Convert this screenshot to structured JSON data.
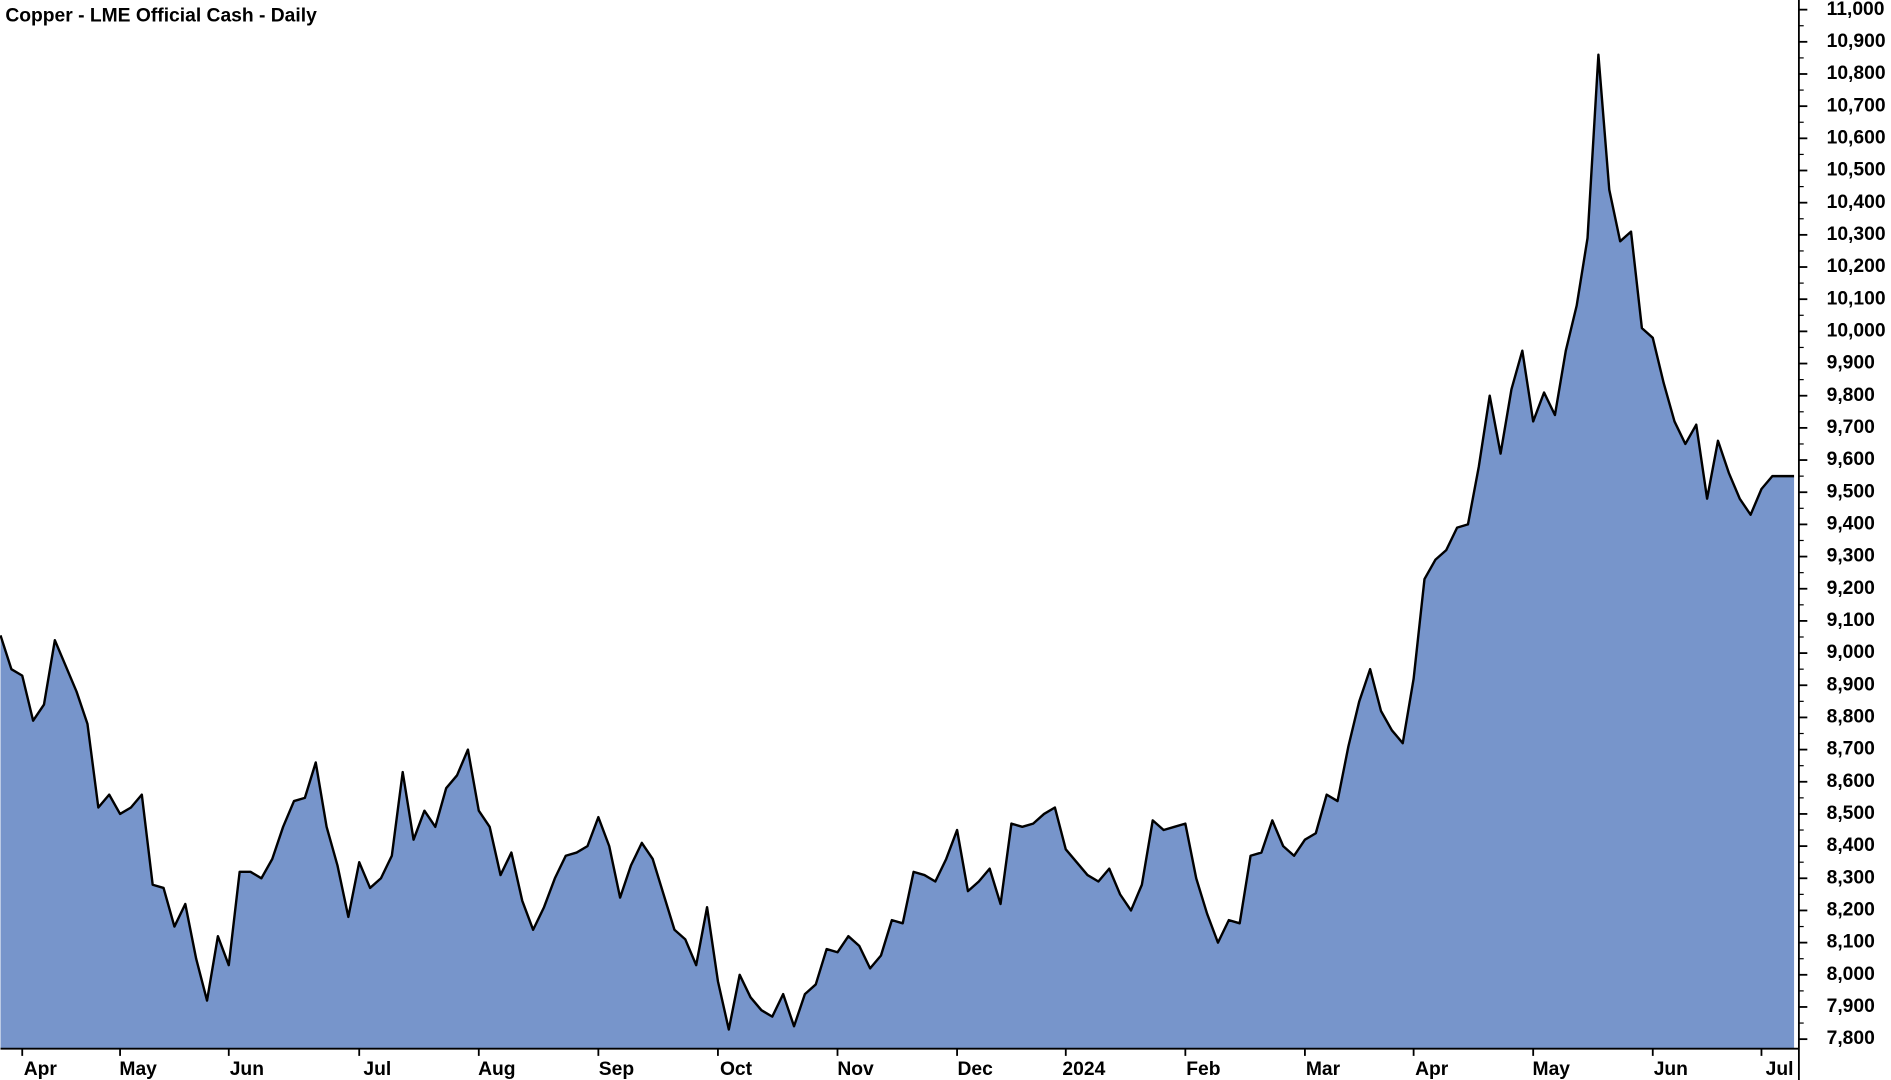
{
  "chart_data": {
    "type": "area",
    "title": "Copper - LME Official Cash - Daily",
    "color": "#7795cb",
    "line_color": "#000000",
    "categories": [
      null,
      null,
      "Apr",
      null,
      null,
      null,
      null,
      null,
      null,
      null,
      null,
      "May",
      null,
      null,
      null,
      null,
      null,
      null,
      null,
      null,
      null,
      "Jun",
      null,
      null,
      null,
      null,
      null,
      null,
      null,
      null,
      null,
      null,
      null,
      "Jul",
      null,
      null,
      null,
      null,
      null,
      null,
      null,
      null,
      null,
      null,
      "Aug",
      null,
      null,
      null,
      null,
      null,
      null,
      null,
      null,
      null,
      null,
      "Sep",
      null,
      null,
      null,
      null,
      null,
      null,
      null,
      null,
      null,
      null,
      "Oct",
      null,
      null,
      null,
      null,
      null,
      null,
      null,
      null,
      null,
      null,
      "Nov",
      null,
      null,
      null,
      null,
      null,
      null,
      null,
      null,
      null,
      null,
      "Dec",
      null,
      null,
      null,
      null,
      null,
      null,
      null,
      null,
      null,
      "2024",
      null,
      null,
      null,
      null,
      null,
      null,
      null,
      null,
      null,
      null,
      "Feb",
      null,
      null,
      null,
      null,
      null,
      null,
      null,
      null,
      null,
      null,
      "Mar",
      null,
      null,
      null,
      null,
      null,
      null,
      null,
      null,
      null,
      "Apr",
      null,
      null,
      null,
      null,
      null,
      null,
      null,
      null,
      null,
      null,
      "May",
      null,
      null,
      null,
      null,
      null,
      null,
      null,
      null,
      null,
      null,
      "Jun",
      null,
      null,
      null,
      null,
      null,
      null,
      null,
      null,
      null,
      "Jul",
      null,
      null,
      null
    ],
    "values": [
      9055,
      8950,
      8930,
      8790,
      8840,
      9040,
      8960,
      8880,
      8780,
      8520,
      8560,
      8500,
      8520,
      8560,
      8280,
      8270,
      8150,
      8220,
      8050,
      7920,
      8120,
      8030,
      8320,
      8320,
      8300,
      8360,
      8460,
      8540,
      8550,
      8660,
      8460,
      8340,
      8180,
      8350,
      8270,
      8300,
      8370,
      8630,
      8420,
      8510,
      8460,
      8580,
      8620,
      8700,
      8510,
      8460,
      8310,
      8380,
      8230,
      8140,
      8210,
      8300,
      8370,
      8380,
      8400,
      8490,
      8400,
      8240,
      8340,
      8410,
      8360,
      8250,
      8140,
      8110,
      8030,
      8210,
      7980,
      7830,
      8000,
      7930,
      7890,
      7870,
      7940,
      7840,
      7940,
      7970,
      8080,
      8070,
      8120,
      8090,
      8020,
      8060,
      8170,
      8160,
      8320,
      8310,
      8290,
      8360,
      8450,
      8260,
      8290,
      8330,
      8220,
      8470,
      8460,
      8470,
      8500,
      8520,
      8390,
      8350,
      8310,
      8290,
      8330,
      8250,
      8200,
      8280,
      8480,
      8450,
      8460,
      8470,
      8300,
      8190,
      8100,
      8170,
      8160,
      8370,
      8380,
      8480,
      8400,
      8370,
      8420,
      8440,
      8560,
      8540,
      8710,
      8850,
      8950,
      8820,
      8760,
      8720,
      8920,
      9230,
      9290,
      9320,
      9390,
      9400,
      9580,
      9800,
      9620,
      9820,
      9940,
      9720,
      9810,
      9740,
      9940,
      10080,
      10290,
      10860,
      10440,
      10280,
      10310,
      10010,
      9980,
      9840,
      9720,
      9650,
      9710,
      9480,
      9660,
      9560,
      9480,
      9430,
      9510,
      9550,
      9550,
      9550
    ],
    "ylim": [
      7673,
      11030
    ],
    "yticks": [
      {
        "value": 7800,
        "label": "7,800"
      },
      {
        "value": 7900,
        "label": "7,900"
      },
      {
        "value": 8000,
        "label": "8,000"
      },
      {
        "value": 8100,
        "label": "8,100"
      },
      {
        "value": 8200,
        "label": "8,200"
      },
      {
        "value": 8300,
        "label": "8,300"
      },
      {
        "value": 8400,
        "label": "8,400"
      },
      {
        "value": 8500,
        "label": "8,500"
      },
      {
        "value": 8600,
        "label": "8,600"
      },
      {
        "value": 8700,
        "label": "8,700"
      },
      {
        "value": 8800,
        "label": "8,800"
      },
      {
        "value": 8900,
        "label": "8,900"
      },
      {
        "value": 9000,
        "label": "9,000"
      },
      {
        "value": 9100,
        "label": "9,100"
      },
      {
        "value": 9200,
        "label": "9,200"
      },
      {
        "value": 9300,
        "label": "9,300"
      },
      {
        "value": 9400,
        "label": "9,400"
      },
      {
        "value": 9500,
        "label": "9,500"
      },
      {
        "value": 9600,
        "label": "9,600"
      },
      {
        "value": 9700,
        "label": "9,700"
      },
      {
        "value": 9800,
        "label": "9,800"
      },
      {
        "value": 9900,
        "label": "9,900"
      },
      {
        "value": 10000,
        "label": "10,000"
      },
      {
        "value": 10100,
        "label": "10,100"
      },
      {
        "value": 10200,
        "label": "10,200"
      },
      {
        "value": 10300,
        "label": "10,300"
      },
      {
        "value": 10400,
        "label": "10,400"
      },
      {
        "value": 10500,
        "label": "10,500"
      },
      {
        "value": 10600,
        "label": "10,600"
      },
      {
        "value": 10700,
        "label": "10,700"
      },
      {
        "value": 10800,
        "label": "10,800"
      },
      {
        "value": 10900,
        "label": "10,900"
      },
      {
        "value": 11000,
        "label": "11,000"
      }
    ],
    "grid": false
  }
}
